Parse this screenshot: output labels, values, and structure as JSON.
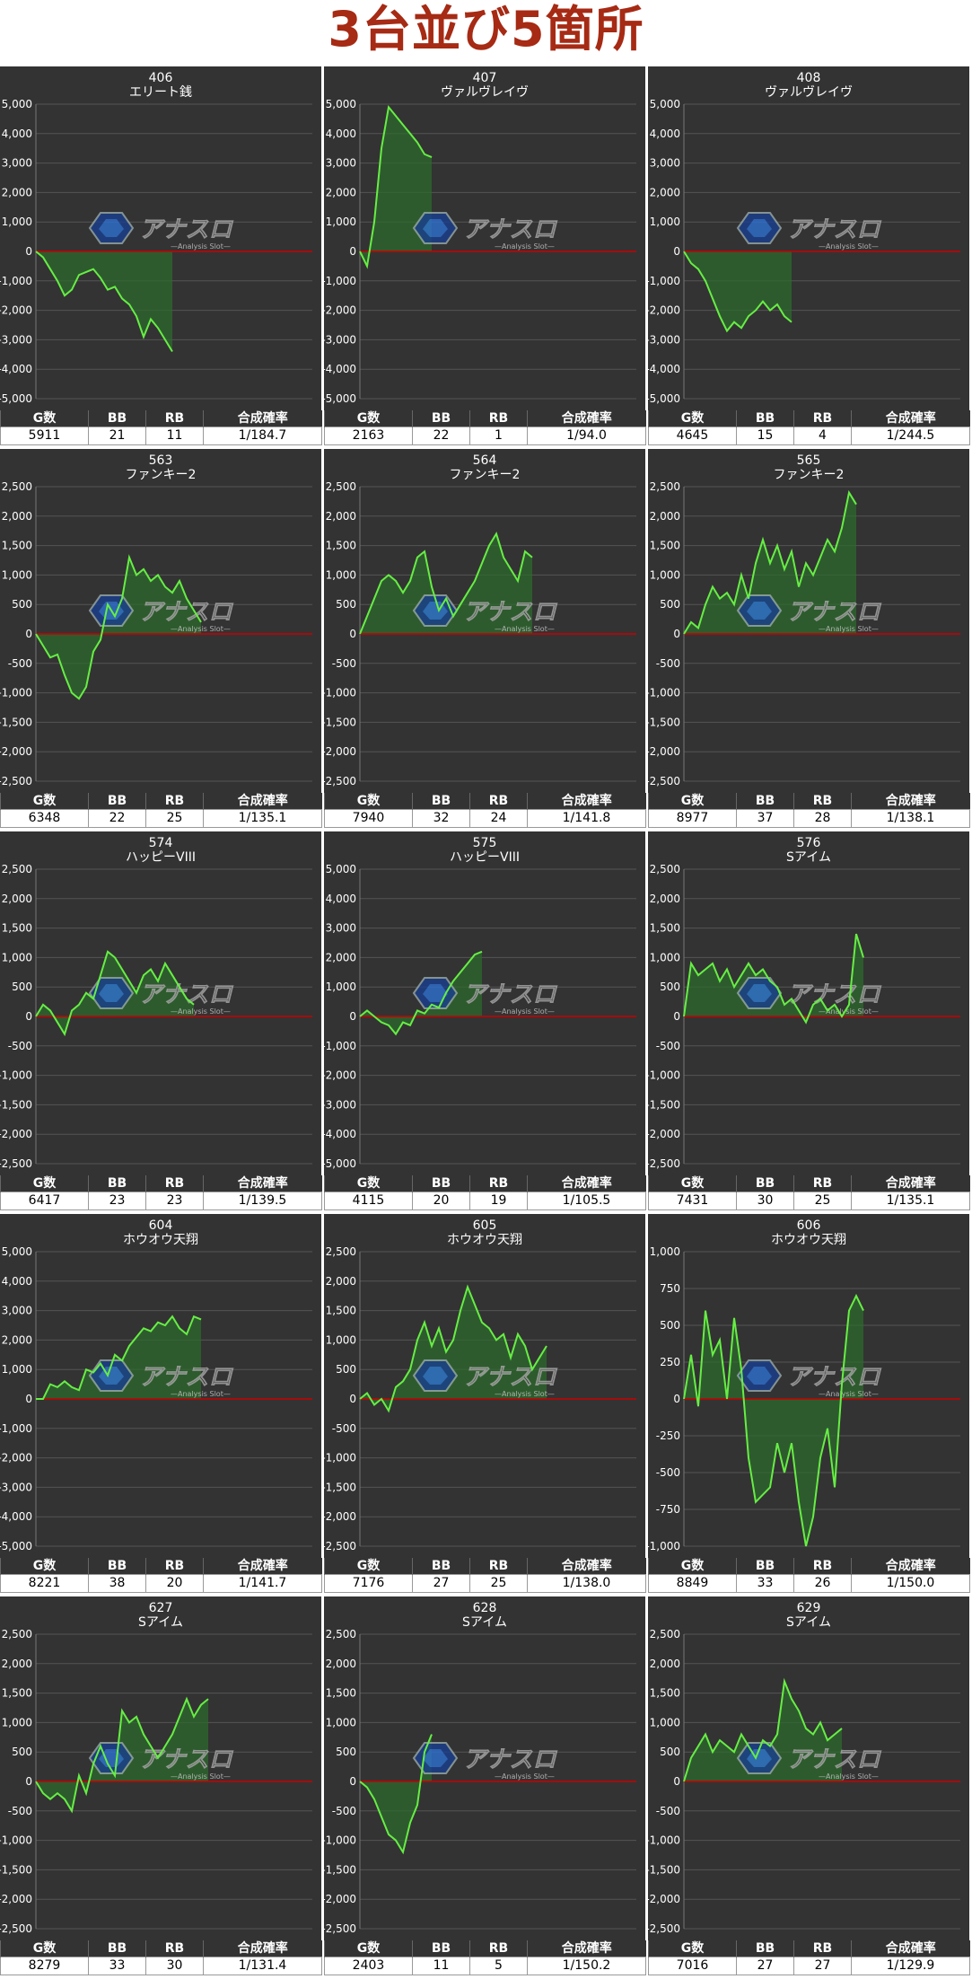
{
  "page_title": "3台並び5箇所",
  "table_headers": [
    "G数",
    "BB",
    "RB",
    "合成確率"
  ],
  "colors": {
    "title": "#a62a14",
    "panel_bg": "#333333",
    "line": "#66ee44",
    "fill": "#2e6a2e",
    "zero_line": "#cc0000",
    "grid": "#555555"
  },
  "logo": {
    "name": "アナスロ",
    "sub": "Analysis Slot"
  },
  "chart_data": [
    {
      "type": "area",
      "machine_no": "406",
      "machine_name": "エリート銭",
      "yticks": [
        5000,
        4000,
        3000,
        2000,
        1000,
        0,
        -1000,
        -2000,
        -3000,
        -4000,
        -5000
      ],
      "ylim": [
        -5000,
        5000
      ],
      "values": [
        0,
        -200,
        -600,
        -1000,
        -1500,
        -1300,
        -800,
        -700,
        -600,
        -900,
        -1300,
        -1200,
        -1600,
        -1800,
        -2200,
        -2900,
        -2300,
        -2600,
        -3000,
        -3400
      ],
      "stats": {
        "games": "5911",
        "bb": "21",
        "rb": "11",
        "rate": "1/184.7"
      }
    },
    {
      "type": "area",
      "machine_no": "407",
      "machine_name": "ヴァルヴレイヴ",
      "yticks": [
        5000,
        4000,
        3000,
        2000,
        1000,
        0,
        -1000,
        -2000,
        -3000,
        -4000,
        -5000
      ],
      "ylim": [
        -5000,
        5000
      ],
      "values": [
        0,
        -500,
        1000,
        3500,
        4900,
        4600,
        4300,
        4000,
        3700,
        3300,
        3200
      ],
      "stats": {
        "games": "2163",
        "bb": "22",
        "rb": "1",
        "rate": "1/94.0"
      }
    },
    {
      "type": "area",
      "machine_no": "408",
      "machine_name": "ヴァルヴレイヴ",
      "yticks": [
        5000,
        4000,
        3000,
        2000,
        1000,
        0,
        -1000,
        -2000,
        -3000,
        -4000,
        -5000
      ],
      "ylim": [
        -5000,
        5000
      ],
      "values": [
        0,
        -400,
        -600,
        -1000,
        -1600,
        -2200,
        -2700,
        -2400,
        -2600,
        -2200,
        -2000,
        -1700,
        -2000,
        -1800,
        -2200,
        -2400
      ],
      "stats": {
        "games": "4645",
        "bb": "15",
        "rb": "4",
        "rate": "1/244.5"
      }
    },
    {
      "type": "area",
      "machine_no": "563",
      "machine_name": "ファンキー2",
      "yticks": [
        2500,
        2000,
        1500,
        1000,
        500,
        0,
        -500,
        -1000,
        -1500,
        -2000,
        -2500
      ],
      "ylim": [
        -2500,
        2500
      ],
      "values": [
        0,
        -200,
        -400,
        -350,
        -700,
        -1000,
        -1100,
        -900,
        -300,
        -100,
        500,
        300,
        600,
        1300,
        1000,
        1100,
        900,
        1000,
        800,
        700,
        900,
        600,
        400,
        200
      ],
      "stats": {
        "games": "6348",
        "bb": "22",
        "rb": "25",
        "rate": "1/135.1"
      }
    },
    {
      "type": "area",
      "machine_no": "564",
      "machine_name": "ファンキー2",
      "yticks": [
        2500,
        2000,
        1500,
        1000,
        500,
        0,
        -500,
        -1000,
        -1500,
        -2000,
        -2500
      ],
      "ylim": [
        -2500,
        2500
      ],
      "values": [
        0,
        300,
        600,
        900,
        1000,
        900,
        700,
        900,
        1300,
        1400,
        800,
        400,
        600,
        300,
        500,
        700,
        900,
        1200,
        1500,
        1700,
        1300,
        1100,
        900,
        1400,
        1300
      ],
      "stats": {
        "games": "7940",
        "bb": "32",
        "rb": "24",
        "rate": "1/141.8"
      }
    },
    {
      "type": "area",
      "machine_no": "565",
      "machine_name": "ファンキー2",
      "yticks": [
        2500,
        2000,
        1500,
        1000,
        500,
        0,
        -500,
        -1000,
        -1500,
        -2000,
        -2500
      ],
      "ylim": [
        -2500,
        2500
      ],
      "values": [
        0,
        200,
        100,
        500,
        800,
        600,
        700,
        500,
        1000,
        600,
        1200,
        1600,
        1200,
        1500,
        1100,
        1400,
        800,
        1200,
        1000,
        1300,
        1600,
        1400,
        1800,
        2400,
        2200
      ],
      "stats": {
        "games": "8977",
        "bb": "37",
        "rb": "28",
        "rate": "1/138.1"
      }
    },
    {
      "type": "area",
      "machine_no": "574",
      "machine_name": "ハッピーVIII",
      "yticks": [
        2500,
        2000,
        1500,
        1000,
        500,
        0,
        -500,
        -1000,
        -1500,
        -2000,
        -2500
      ],
      "ylim": [
        -2500,
        2500
      ],
      "values": [
        0,
        200,
        100,
        -100,
        -300,
        100,
        200,
        400,
        300,
        700,
        1100,
        1000,
        800,
        600,
        400,
        700,
        800,
        600,
        900,
        700,
        500,
        300,
        200
      ],
      "stats": {
        "games": "6417",
        "bb": "23",
        "rb": "23",
        "rate": "1/139.5"
      }
    },
    {
      "type": "area",
      "machine_no": "575",
      "machine_name": "ハッピーVIII",
      "yticks": [
        5000,
        4000,
        3000,
        2000,
        1000,
        0,
        -1000,
        -2000,
        -3000,
        -4000,
        -5000
      ],
      "ylim": [
        -5000,
        5000
      ],
      "values": [
        0,
        200,
        0,
        -200,
        -300,
        -600,
        -200,
        -300,
        200,
        100,
        400,
        300,
        800,
        1200,
        1500,
        1800,
        2100,
        2200
      ],
      "stats": {
        "games": "4115",
        "bb": "20",
        "rb": "19",
        "rate": "1/105.5"
      }
    },
    {
      "type": "area",
      "machine_no": "576",
      "machine_name": "Sアイム",
      "yticks": [
        2500,
        2000,
        1500,
        1000,
        500,
        0,
        -500,
        -1000,
        -1500,
        -2000,
        -2500
      ],
      "ylim": [
        -2500,
        2500
      ],
      "values": [
        0,
        900,
        700,
        800,
        900,
        600,
        800,
        500,
        700,
        900,
        700,
        800,
        600,
        500,
        200,
        300,
        100,
        -100,
        200,
        300,
        100,
        200,
        0,
        200,
        1400,
        1000
      ],
      "stats": {
        "games": "7431",
        "bb": "30",
        "rb": "25",
        "rate": "1/135.1"
      }
    },
    {
      "type": "area",
      "machine_no": "604",
      "machine_name": "ホウオウ天翔",
      "yticks": [
        5000,
        4000,
        3000,
        2000,
        1000,
        0,
        -1000,
        -2000,
        -3000,
        -4000,
        -5000
      ],
      "ylim": [
        -5000,
        5000
      ],
      "values": [
        0,
        0,
        500,
        400,
        600,
        400,
        300,
        1000,
        900,
        1200,
        800,
        1500,
        1300,
        1800,
        2100,
        2400,
        2300,
        2600,
        2500,
        2800,
        2400,
        2200,
        2800,
        2700
      ],
      "stats": {
        "games": "8221",
        "bb": "38",
        "rb": "20",
        "rate": "1/141.7"
      }
    },
    {
      "type": "area",
      "machine_no": "605",
      "machine_name": "ホウオウ天翔",
      "yticks": [
        2500,
        2000,
        1500,
        1000,
        500,
        0,
        -500,
        -1000,
        -1500,
        -2000,
        -2500
      ],
      "ylim": [
        -2500,
        2500
      ],
      "values": [
        0,
        100,
        -100,
        0,
        -200,
        200,
        300,
        500,
        1000,
        1300,
        900,
        1200,
        800,
        1000,
        1500,
        1900,
        1600,
        1300,
        1200,
        1000,
        1100,
        700,
        1100,
        900,
        500,
        700,
        900
      ],
      "stats": {
        "games": "7176",
        "bb": "27",
        "rb": "25",
        "rate": "1/138.0"
      }
    },
    {
      "type": "area",
      "machine_no": "606",
      "machine_name": "ホウオウ天翔",
      "yticks": [
        1000,
        750,
        500,
        250,
        0,
        -250,
        -500,
        -750,
        -1000
      ],
      "ylim": [
        -1000,
        1000
      ],
      "values": [
        0,
        300,
        -50,
        600,
        300,
        400,
        0,
        550,
        200,
        -400,
        -700,
        -650,
        -600,
        -300,
        -500,
        -300,
        -700,
        -1000,
        -800,
        -400,
        -200,
        -600,
        100,
        600,
        700,
        600
      ],
      "stats": {
        "games": "8849",
        "bb": "33",
        "rb": "26",
        "rate": "1/150.0"
      }
    },
    {
      "type": "area",
      "machine_no": "627",
      "machine_name": "Sアイム",
      "yticks": [
        2500,
        2000,
        1500,
        1000,
        500,
        0,
        -500,
        -1000,
        -1500,
        -2000,
        -2500
      ],
      "ylim": [
        -2500,
        2500
      ],
      "values": [
        0,
        -200,
        -300,
        -200,
        -300,
        -500,
        100,
        -200,
        300,
        600,
        300,
        100,
        1200,
        1000,
        1100,
        800,
        600,
        400,
        600,
        800,
        1100,
        1400,
        1100,
        1300,
        1400
      ],
      "stats": {
        "games": "8279",
        "bb": "33",
        "rb": "30",
        "rate": "1/131.4"
      }
    },
    {
      "type": "area",
      "machine_no": "628",
      "machine_name": "Sアイム",
      "yticks": [
        2500,
        2000,
        1500,
        1000,
        500,
        0,
        -500,
        -1000,
        -1500,
        -2000,
        -2500
      ],
      "ylim": [
        -2500,
        2500
      ],
      "values": [
        0,
        -100,
        -300,
        -600,
        -900,
        -1000,
        -1200,
        -700,
        -400,
        500,
        800
      ],
      "stats": {
        "games": "2403",
        "bb": "11",
        "rb": "5",
        "rate": "1/150.2"
      }
    },
    {
      "type": "area",
      "machine_no": "629",
      "machine_name": "Sアイム",
      "yticks": [
        2500,
        2000,
        1500,
        1000,
        500,
        0,
        -500,
        -1000,
        -1500,
        -2000,
        -2500
      ],
      "ylim": [
        -2500,
        2500
      ],
      "values": [
        0,
        400,
        600,
        800,
        500,
        700,
        600,
        500,
        800,
        600,
        400,
        700,
        600,
        800,
        1700,
        1400,
        1200,
        900,
        800,
        1000,
        700,
        800,
        900
      ],
      "stats": {
        "games": "7016",
        "bb": "27",
        "rb": "27",
        "rate": "1/129.9"
      }
    }
  ]
}
